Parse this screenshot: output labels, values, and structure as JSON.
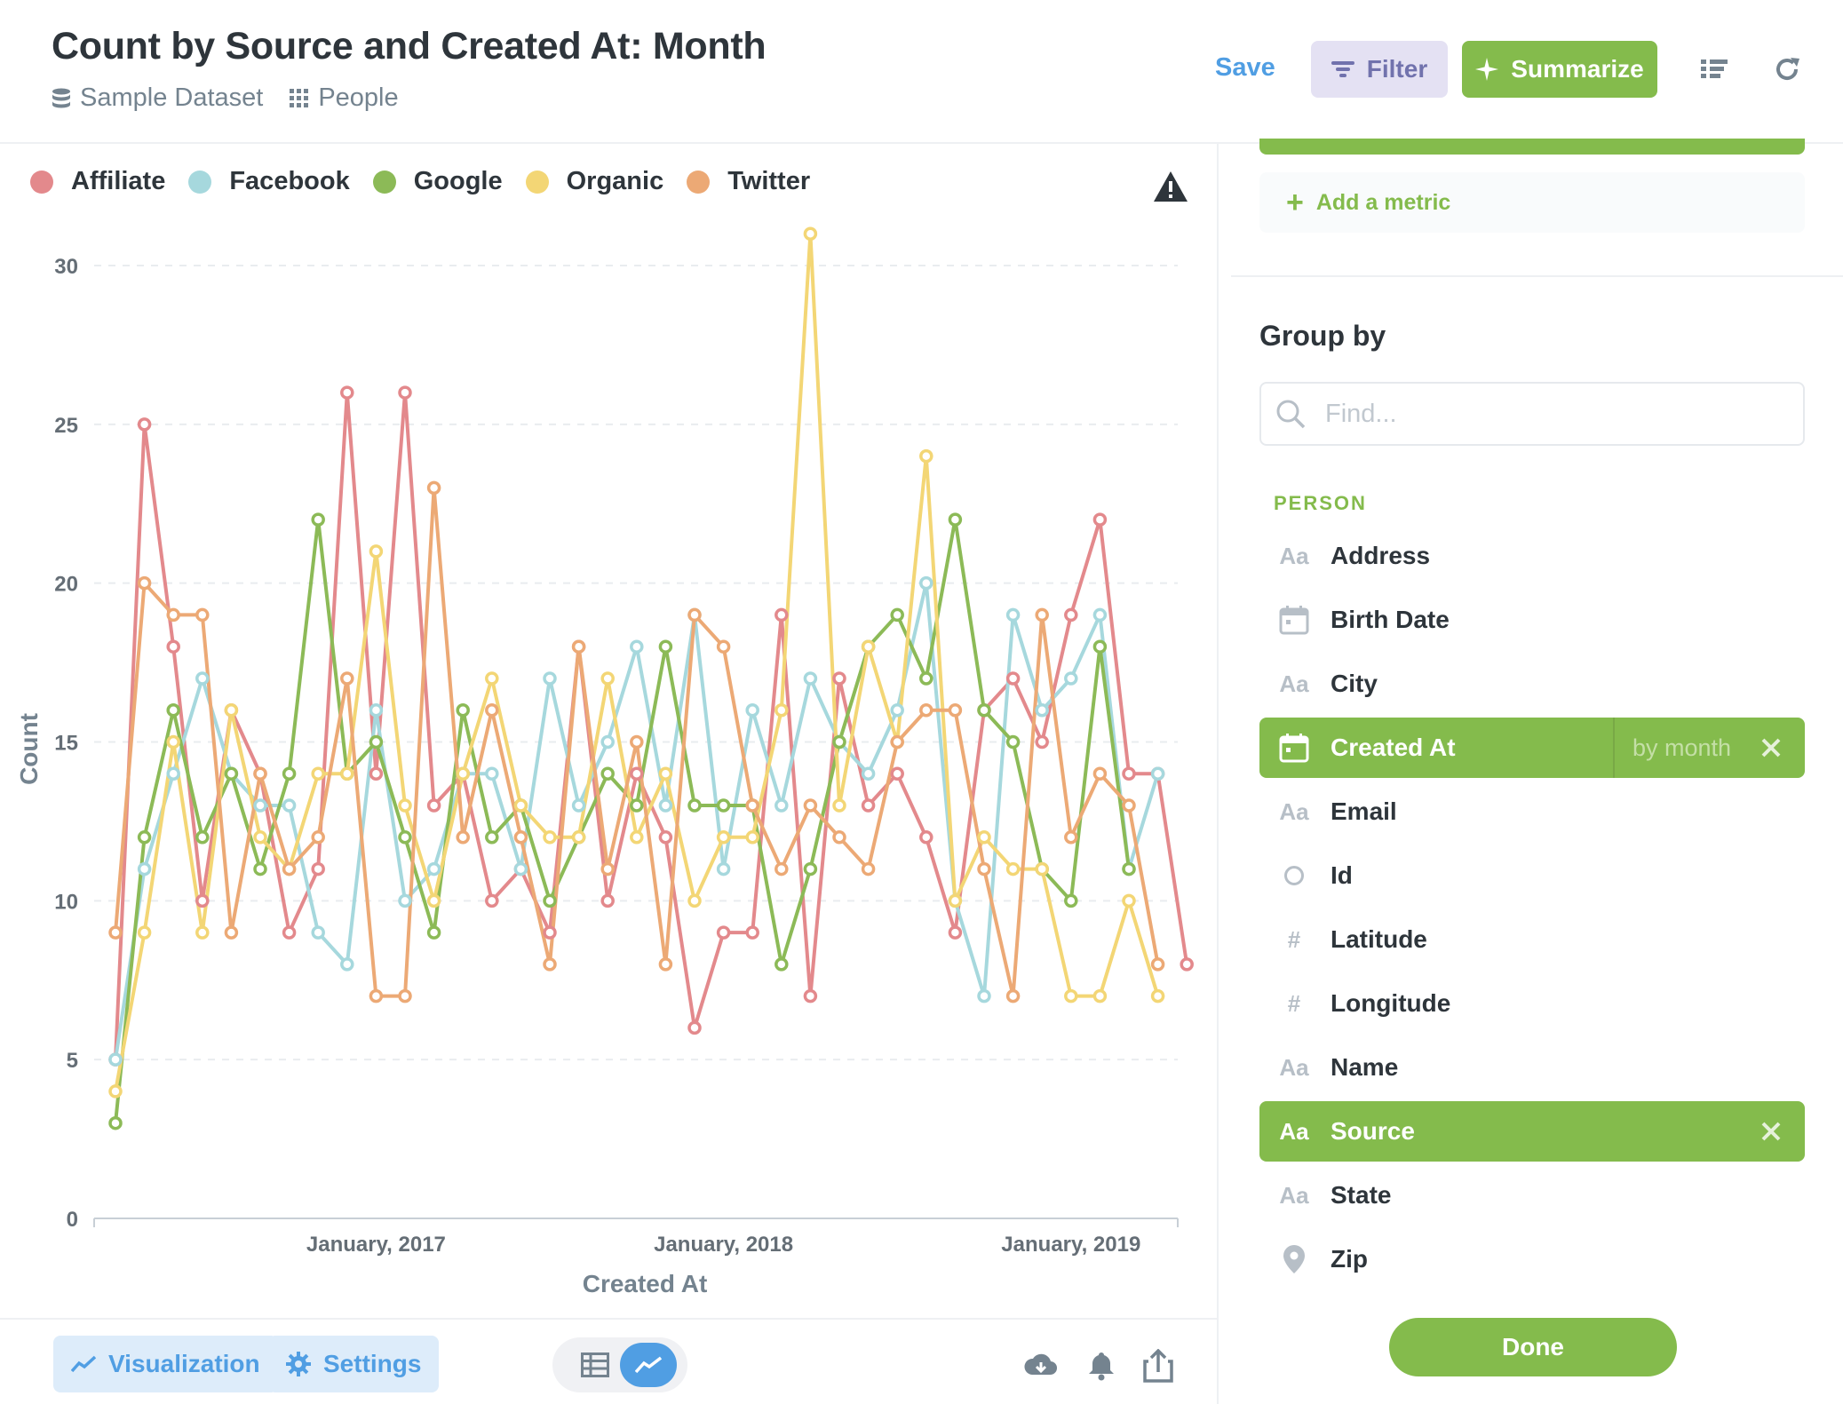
{
  "header": {
    "title": "Count by Source and Created At: Month",
    "database": "Sample Dataset",
    "table": "People",
    "save_label": "Save",
    "filter_label": "Filter",
    "summarize_label": "Summarize"
  },
  "colors": {
    "affiliate": "#e3898c",
    "facebook": "#a6d8dd",
    "google": "#8cba57",
    "organic": "#f3d675",
    "twitter": "#eca975",
    "accent_green": "#84bb4c",
    "accent_blue": "#509ee3"
  },
  "chart_data": {
    "type": "line",
    "xlabel": "Created At",
    "ylabel": "Count",
    "ylim": [
      0,
      30
    ],
    "yticks": [
      "0",
      "5",
      "10",
      "15",
      "20",
      "25",
      "30"
    ],
    "x_tick_labels": [
      "January, 2017",
      "January, 2018",
      "January, 2019"
    ],
    "x_tick_month_index": [
      9,
      21,
      33
    ],
    "legend_position": "top-left",
    "grid": "horizontal dashed",
    "series": [
      {
        "name": "Affiliate",
        "color": "#e3898c",
        "values": [
          5,
          25,
          18,
          10,
          16,
          14,
          9,
          11,
          26,
          14,
          26,
          13,
          14,
          10,
          11,
          9,
          18,
          10,
          14,
          12,
          6,
          9,
          9,
          19,
          7,
          17,
          13,
          14,
          12,
          9,
          16,
          17,
          15,
          19,
          22,
          14,
          14,
          8
        ]
      },
      {
        "name": "Facebook",
        "color": "#a6d8dd",
        "values": [
          5,
          11,
          14,
          17,
          14,
          13,
          13,
          9,
          8,
          16,
          10,
          11,
          14,
          14,
          11,
          17,
          13,
          15,
          18,
          13,
          19,
          11,
          16,
          13,
          17,
          15,
          14,
          16,
          20,
          10,
          7,
          19,
          16,
          17,
          19,
          11,
          14,
          null
        ]
      },
      {
        "name": "Google",
        "color": "#8cba57",
        "values": [
          3,
          12,
          16,
          12,
          14,
          11,
          14,
          22,
          14,
          15,
          12,
          9,
          16,
          12,
          13,
          10,
          12,
          14,
          13,
          18,
          13,
          13,
          13,
          8,
          11,
          15,
          18,
          19,
          17,
          22,
          16,
          15,
          11,
          10,
          18,
          11,
          null,
          null
        ]
      },
      {
        "name": "Organic",
        "color": "#f3d675",
        "values": [
          4,
          9,
          15,
          9,
          16,
          12,
          11,
          14,
          14,
          21,
          13,
          10,
          14,
          17,
          13,
          12,
          12,
          17,
          12,
          14,
          10,
          12,
          12,
          16,
          31,
          13,
          18,
          15,
          24,
          10,
          12,
          11,
          11,
          7,
          7,
          10,
          7,
          null
        ]
      },
      {
        "name": "Twitter",
        "color": "#eca975",
        "values": [
          9,
          20,
          19,
          19,
          9,
          14,
          11,
          12,
          17,
          7,
          7,
          23,
          12,
          16,
          12,
          8,
          18,
          11,
          15,
          8,
          19,
          18,
          13,
          11,
          13,
          12,
          11,
          15,
          16,
          16,
          11,
          7,
          19,
          12,
          14,
          13,
          8,
          null
        ]
      }
    ]
  },
  "footer": {
    "visualization_label": "Visualization",
    "settings_label": "Settings"
  },
  "sidebar": {
    "add_metric_label": "Add a metric",
    "group_by_title": "Group by",
    "find_placeholder": "Find...",
    "section_label": "PERSON",
    "fields": [
      {
        "label": "Address",
        "icon": "text-icon"
      },
      {
        "label": "Birth Date",
        "icon": "calendar-icon"
      },
      {
        "label": "City",
        "icon": "text-icon"
      },
      {
        "label": "Created At",
        "icon": "calendar-icon",
        "selected": true,
        "binning": "by month"
      },
      {
        "label": "Email",
        "icon": "text-icon"
      },
      {
        "label": "Id",
        "icon": "id-icon"
      },
      {
        "label": "Latitude",
        "icon": "number-icon"
      },
      {
        "label": "Longitude",
        "icon": "number-icon"
      },
      {
        "label": "Name",
        "icon": "text-icon"
      },
      {
        "label": "Source",
        "icon": "text-icon",
        "selected": true
      },
      {
        "label": "State",
        "icon": "text-icon"
      },
      {
        "label": "Zip",
        "icon": "location-icon"
      }
    ],
    "field_icon_text": "Aa",
    "field_icon_number": "#",
    "done_label": "Done"
  }
}
